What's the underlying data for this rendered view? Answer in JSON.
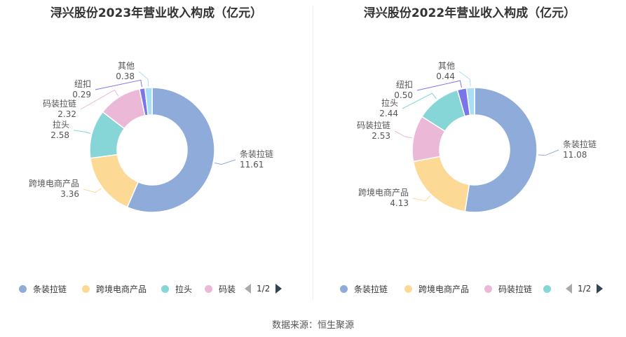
{
  "source_text": "数据来源：恒生聚源",
  "chart_data": [
    {
      "type": "pie",
      "title": "浔兴股份2023年营业收入构成（亿元）",
      "slices": [
        {
          "label": "条装拉链",
          "value": 11.61,
          "value_text": "11.61",
          "color": "#8eabda"
        },
        {
          "label": "跨境电商产品",
          "value": 3.36,
          "value_text": "3.36",
          "color": "#fdd996"
        },
        {
          "label": "拉头",
          "value": 2.58,
          "value_text": "2.58",
          "color": "#86d6d8"
        },
        {
          "label": "码装拉链",
          "value": 2.32,
          "value_text": "2.32",
          "color": "#ebb8d8"
        },
        {
          "label": "纽扣",
          "value": 0.29,
          "value_text": "0.29",
          "color": "#7a76ea"
        },
        {
          "label": "其他",
          "value": 0.38,
          "value_text": "0.38",
          "color": "#a9dff2"
        }
      ],
      "legend": {
        "items": [
          {
            "label": "条装拉链",
            "color": "#8eabda"
          },
          {
            "label": "跨境电商产品",
            "color": "#fdd996"
          },
          {
            "label": "拉头",
            "color": "#86d6d8"
          },
          {
            "label": "码装",
            "color": "#ebb8d8"
          }
        ],
        "page_text": "1/2"
      }
    },
    {
      "type": "pie",
      "title": "浔兴股份2022年营业收入构成（亿元）",
      "slices": [
        {
          "label": "条装拉链",
          "value": 11.08,
          "value_text": "11.08",
          "color": "#8eabda"
        },
        {
          "label": "跨境电商产品",
          "value": 4.13,
          "value_text": "4.13",
          "color": "#fdd996"
        },
        {
          "label": "码装拉链",
          "value": 2.53,
          "value_text": "2.53",
          "color": "#ebb8d8"
        },
        {
          "label": "拉头",
          "value": 2.44,
          "value_text": "2.44",
          "color": "#86d6d8"
        },
        {
          "label": "纽扣",
          "value": 0.5,
          "value_text": "0.50",
          "color": "#7a76ea"
        },
        {
          "label": "其他",
          "value": 0.44,
          "value_text": "0.44",
          "color": "#a9dff2"
        }
      ],
      "legend": {
        "items": [
          {
            "label": "条装拉链",
            "color": "#8eabda"
          },
          {
            "label": "跨境电商产品",
            "color": "#fdd996"
          },
          {
            "label": "码装拉链",
            "color": "#ebb8d8"
          },
          {
            "label": "",
            "color": "#86d6d8"
          }
        ],
        "page_text": "1/2"
      }
    }
  ]
}
